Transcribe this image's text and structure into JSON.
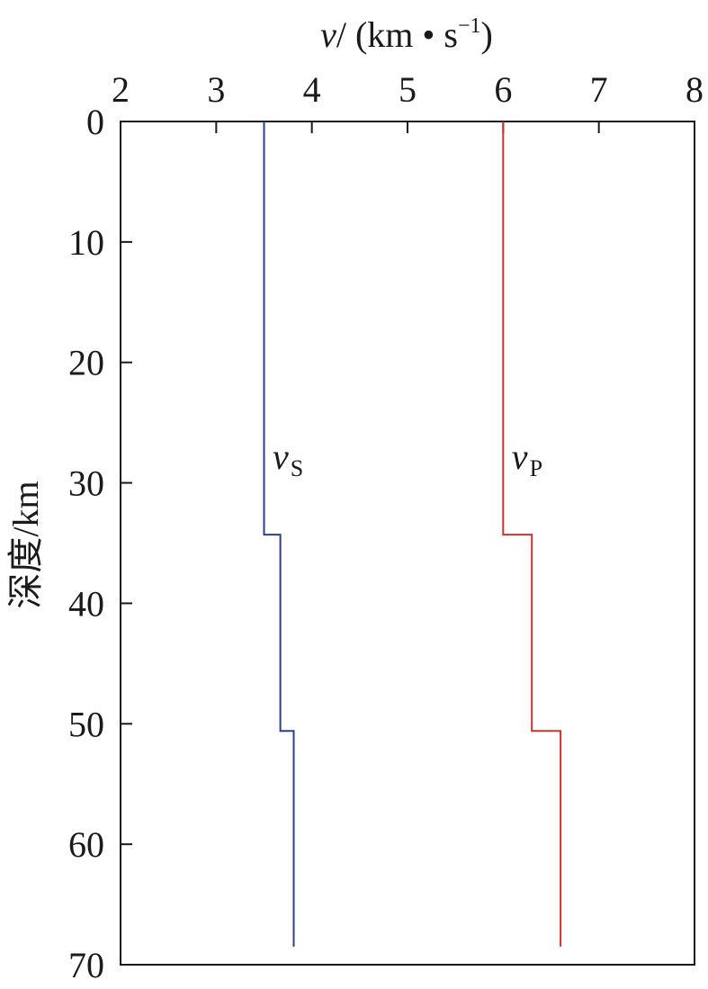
{
  "chart_data": {
    "type": "line",
    "title": "",
    "xlabel": {
      "var": "v",
      "rest": "/ (km • s",
      "sup": "−1",
      "close": ")"
    },
    "ylabel": "深度/km",
    "x_axis_position": "top",
    "y_inverted": true,
    "xlim": [
      2,
      8
    ],
    "ylim": [
      0,
      70
    ],
    "xticks": [
      2,
      3,
      4,
      5,
      6,
      7,
      8
    ],
    "yticks": [
      0,
      10,
      20,
      30,
      40,
      50,
      60,
      70
    ],
    "grid": false,
    "series": [
      {
        "label": "vS",
        "label_var": "v",
        "label_sub": "S",
        "label_at": {
          "x": 3.75,
          "depth": 29
        },
        "color": "#2a3f8f",
        "points": [
          {
            "v": 3.5,
            "depth": 0
          },
          {
            "v": 3.5,
            "depth": 34.3
          },
          {
            "v": 3.67,
            "depth": 34.3
          },
          {
            "v": 3.67,
            "depth": 50.6
          },
          {
            "v": 3.81,
            "depth": 50.6
          },
          {
            "v": 3.81,
            "depth": 68.5
          }
        ]
      },
      {
        "label": "vP",
        "label_var": "v",
        "label_sub": "P",
        "label_at": {
          "x": 6.25,
          "depth": 29
        },
        "color": "#d0312d",
        "points": [
          {
            "v": 6.0,
            "depth": 0
          },
          {
            "v": 6.0,
            "depth": 34.3
          },
          {
            "v": 6.3,
            "depth": 34.3
          },
          {
            "v": 6.3,
            "depth": 50.6
          },
          {
            "v": 6.6,
            "depth": 50.6
          },
          {
            "v": 6.6,
            "depth": 68.5
          }
        ]
      }
    ]
  }
}
